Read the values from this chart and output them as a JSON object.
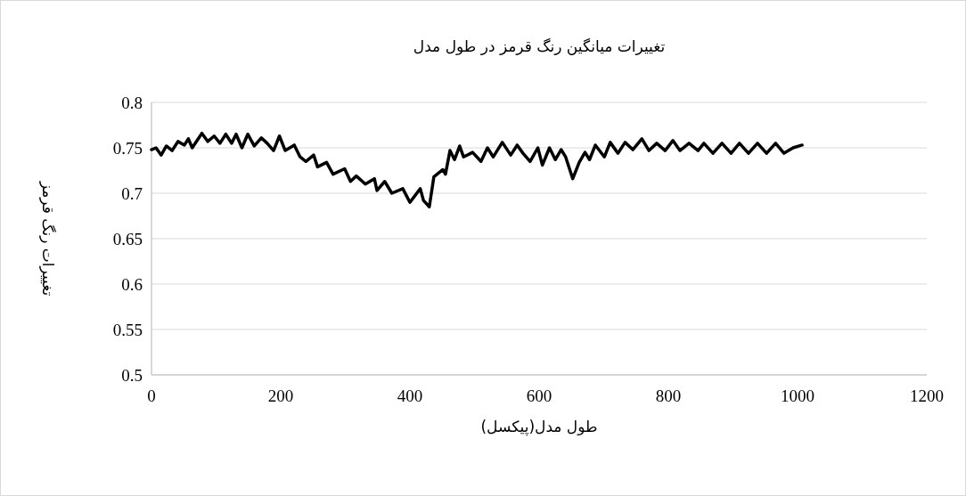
{
  "chart_data": {
    "type": "line",
    "title": "تغییرات میانگین رنگ قرمز در طول مدل",
    "xlabel": "طول مدل(پیکسل)",
    "ylabel": "تغییرات رنگ قرمز",
    "color": "#000000",
    "grid": "y",
    "x": [
      0,
      7,
      15,
      23,
      32,
      41,
      51,
      57,
      63,
      78,
      87,
      97,
      106,
      115,
      124,
      131,
      140,
      149,
      159,
      170,
      179,
      189,
      198,
      207,
      221,
      230,
      239,
      251,
      257,
      271,
      281,
      299,
      308,
      317,
      331,
      345,
      349,
      361,
      372,
      389,
      400,
      416,
      421,
      430,
      437,
      451,
      455,
      462,
      469,
      477,
      483,
      497,
      510,
      520,
      529,
      543,
      556,
      566,
      575,
      586,
      598,
      605,
      616,
      625,
      634,
      641,
      652,
      662,
      671,
      678,
      687,
      701,
      710,
      722,
      733,
      745,
      759,
      770,
      782,
      795,
      807,
      818,
      832,
      846,
      855,
      869,
      883,
      897,
      910,
      924,
      938,
      952,
      966,
      979,
      993,
      1007
    ],
    "values": [
      0.748,
      0.75,
      0.742,
      0.752,
      0.747,
      0.757,
      0.753,
      0.76,
      0.75,
      0.766,
      0.757,
      0.763,
      0.755,
      0.765,
      0.755,
      0.765,
      0.75,
      0.765,
      0.752,
      0.761,
      0.755,
      0.747,
      0.763,
      0.747,
      0.753,
      0.74,
      0.735,
      0.742,
      0.729,
      0.734,
      0.721,
      0.727,
      0.713,
      0.719,
      0.71,
      0.716,
      0.703,
      0.713,
      0.7,
      0.705,
      0.69,
      0.705,
      0.692,
      0.685,
      0.718,
      0.726,
      0.721,
      0.747,
      0.737,
      0.752,
      0.74,
      0.745,
      0.735,
      0.75,
      0.74,
      0.756,
      0.742,
      0.753,
      0.744,
      0.735,
      0.75,
      0.731,
      0.75,
      0.737,
      0.748,
      0.74,
      0.716,
      0.734,
      0.745,
      0.737,
      0.753,
      0.74,
      0.756,
      0.744,
      0.756,
      0.748,
      0.76,
      0.747,
      0.755,
      0.747,
      0.758,
      0.747,
      0.755,
      0.747,
      0.755,
      0.744,
      0.755,
      0.744,
      0.755,
      0.744,
      0.755,
      0.744,
      0.755,
      0.744,
      0.75,
      0.753
    ],
    "xlim": [
      0,
      1200
    ],
    "ylim": [
      0.5,
      0.8
    ],
    "xticks": [
      0,
      200,
      400,
      600,
      800,
      1000,
      1200
    ],
    "yticks": [
      0.5,
      0.55,
      0.6,
      0.65,
      0.7,
      0.75,
      0.8
    ]
  }
}
